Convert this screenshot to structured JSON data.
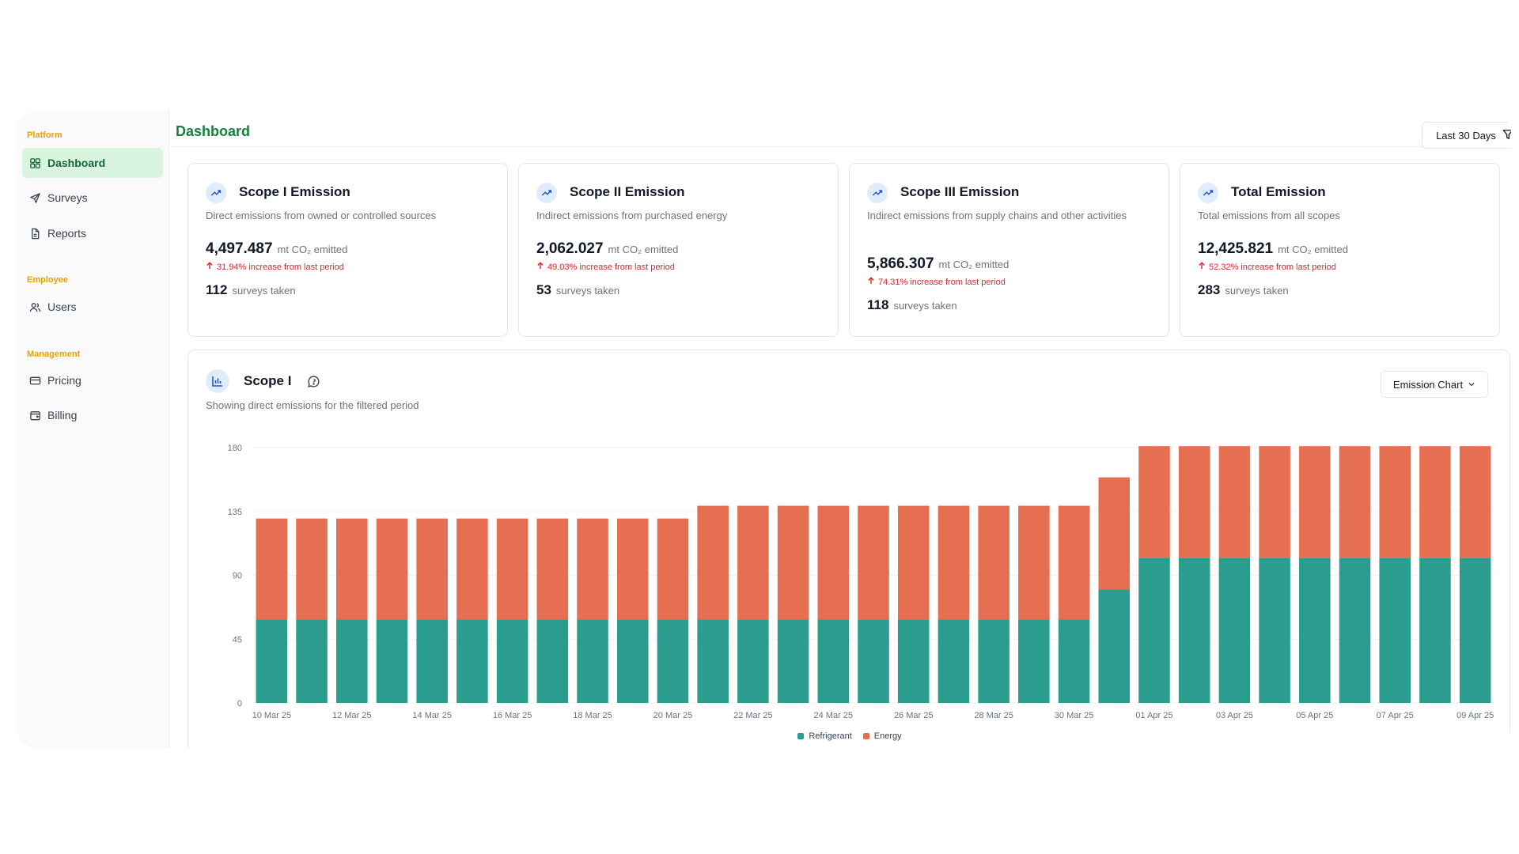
{
  "sidebar": {
    "sections": [
      {
        "label": "Platform",
        "items": [
          {
            "label": "Dashboard",
            "icon": "grid-icon",
            "active": true
          },
          {
            "label": "Surveys",
            "icon": "send-icon"
          },
          {
            "label": "Reports",
            "icon": "file-icon"
          }
        ]
      },
      {
        "label": "Employee",
        "items": [
          {
            "label": "Users",
            "icon": "users-icon"
          }
        ]
      },
      {
        "label": "Management",
        "items": [
          {
            "label": "Pricing",
            "icon": "credit-card-icon"
          },
          {
            "label": "Billing",
            "icon": "wallet-icon"
          }
        ]
      }
    ]
  },
  "header": {
    "title": "Dashboard",
    "period_button": "Last 30 Days"
  },
  "cards": [
    {
      "title": "Scope I Emission",
      "desc": "Direct emissions from owned or controlled sources",
      "value": "4,497.487",
      "unit": "mt CO₂ emitted",
      "change": "31.94% increase from last period",
      "surveys": "112",
      "surveys_unit": "surveys taken"
    },
    {
      "title": "Scope II Emission",
      "desc": "Indirect emissions from purchased energy",
      "value": "2,062.027",
      "unit": "mt CO₂ emitted",
      "change": "49.03% increase from last period",
      "surveys": "53",
      "surveys_unit": "surveys taken"
    },
    {
      "title": "Scope III Emission",
      "desc": "Indirect emissions from supply chains and other activities",
      "value": "5,866.307",
      "unit": "mt CO₂ emitted",
      "change": "74.31% increase from last period",
      "surveys": "118",
      "surveys_unit": "surveys taken"
    },
    {
      "title": "Total Emission",
      "desc": "Total emissions from all scopes",
      "value": "12,425.821",
      "unit": "mt CO₂ emitted",
      "change": "52.32% increase from last period",
      "surveys": "283",
      "surveys_unit": "surveys taken"
    }
  ],
  "chart_section": {
    "title": "Scope I",
    "desc": "Showing direct emissions for the filtered period",
    "select_label": "Emission Chart"
  },
  "colors": {
    "accent": "#15803d",
    "refrigerant": "#2a9d8f",
    "energy": "#e76f51",
    "negative": "#dc2626"
  },
  "chart_data": {
    "type": "bar",
    "stacked": true,
    "categories": [
      "10 Mar 25",
      "11 Mar 25",
      "12 Mar 25",
      "13 Mar 25",
      "14 Mar 25",
      "15 Mar 25",
      "16 Mar 25",
      "17 Mar 25",
      "18 Mar 25",
      "19 Mar 25",
      "20 Mar 25",
      "21 Mar 25",
      "22 Mar 25",
      "23 Mar 25",
      "24 Mar 25",
      "25 Mar 25",
      "26 Mar 25",
      "27 Mar 25",
      "28 Mar 25",
      "29 Mar 25",
      "30 Mar 25",
      "31 Mar 25",
      "01 Apr 25",
      "02 Apr 25",
      "03 Apr 25",
      "04 Apr 25",
      "05 Apr 25",
      "06 Apr 25",
      "07 Apr 25",
      "08 Apr 25",
      "09 Apr 25"
    ],
    "tick_labels": [
      "10 Mar 25",
      "12 Mar 25",
      "14 Mar 25",
      "16 Mar 25",
      "18 Mar 25",
      "20 Mar 25",
      "22 Mar 25",
      "24 Mar 25",
      "26 Mar 25",
      "28 Mar 25",
      "30 Mar 25",
      "01 Apr 25",
      "03 Apr 25",
      "05 Apr 25",
      "07 Apr 25",
      "09 Apr 25"
    ],
    "series": [
      {
        "name": "Refrigerant",
        "values": [
          59,
          59,
          59,
          59,
          59,
          59,
          59,
          59,
          59,
          59,
          59,
          59,
          59,
          59,
          59,
          59,
          59,
          59,
          59,
          59,
          59,
          80,
          102,
          102,
          102,
          102,
          102,
          102,
          102,
          102,
          102
        ]
      },
      {
        "name": "Energy",
        "values": [
          71,
          71,
          71,
          71,
          71,
          71,
          71,
          71,
          71,
          71,
          71,
          80,
          80,
          80,
          80,
          80,
          80,
          80,
          80,
          80,
          80,
          79,
          79,
          79,
          79,
          79,
          79,
          79,
          79,
          79,
          79
        ]
      }
    ],
    "yticks": [
      0,
      45,
      90,
      135,
      180
    ],
    "ylim": [
      0,
      180
    ],
    "grid": true,
    "legend": "bottom-center"
  }
}
